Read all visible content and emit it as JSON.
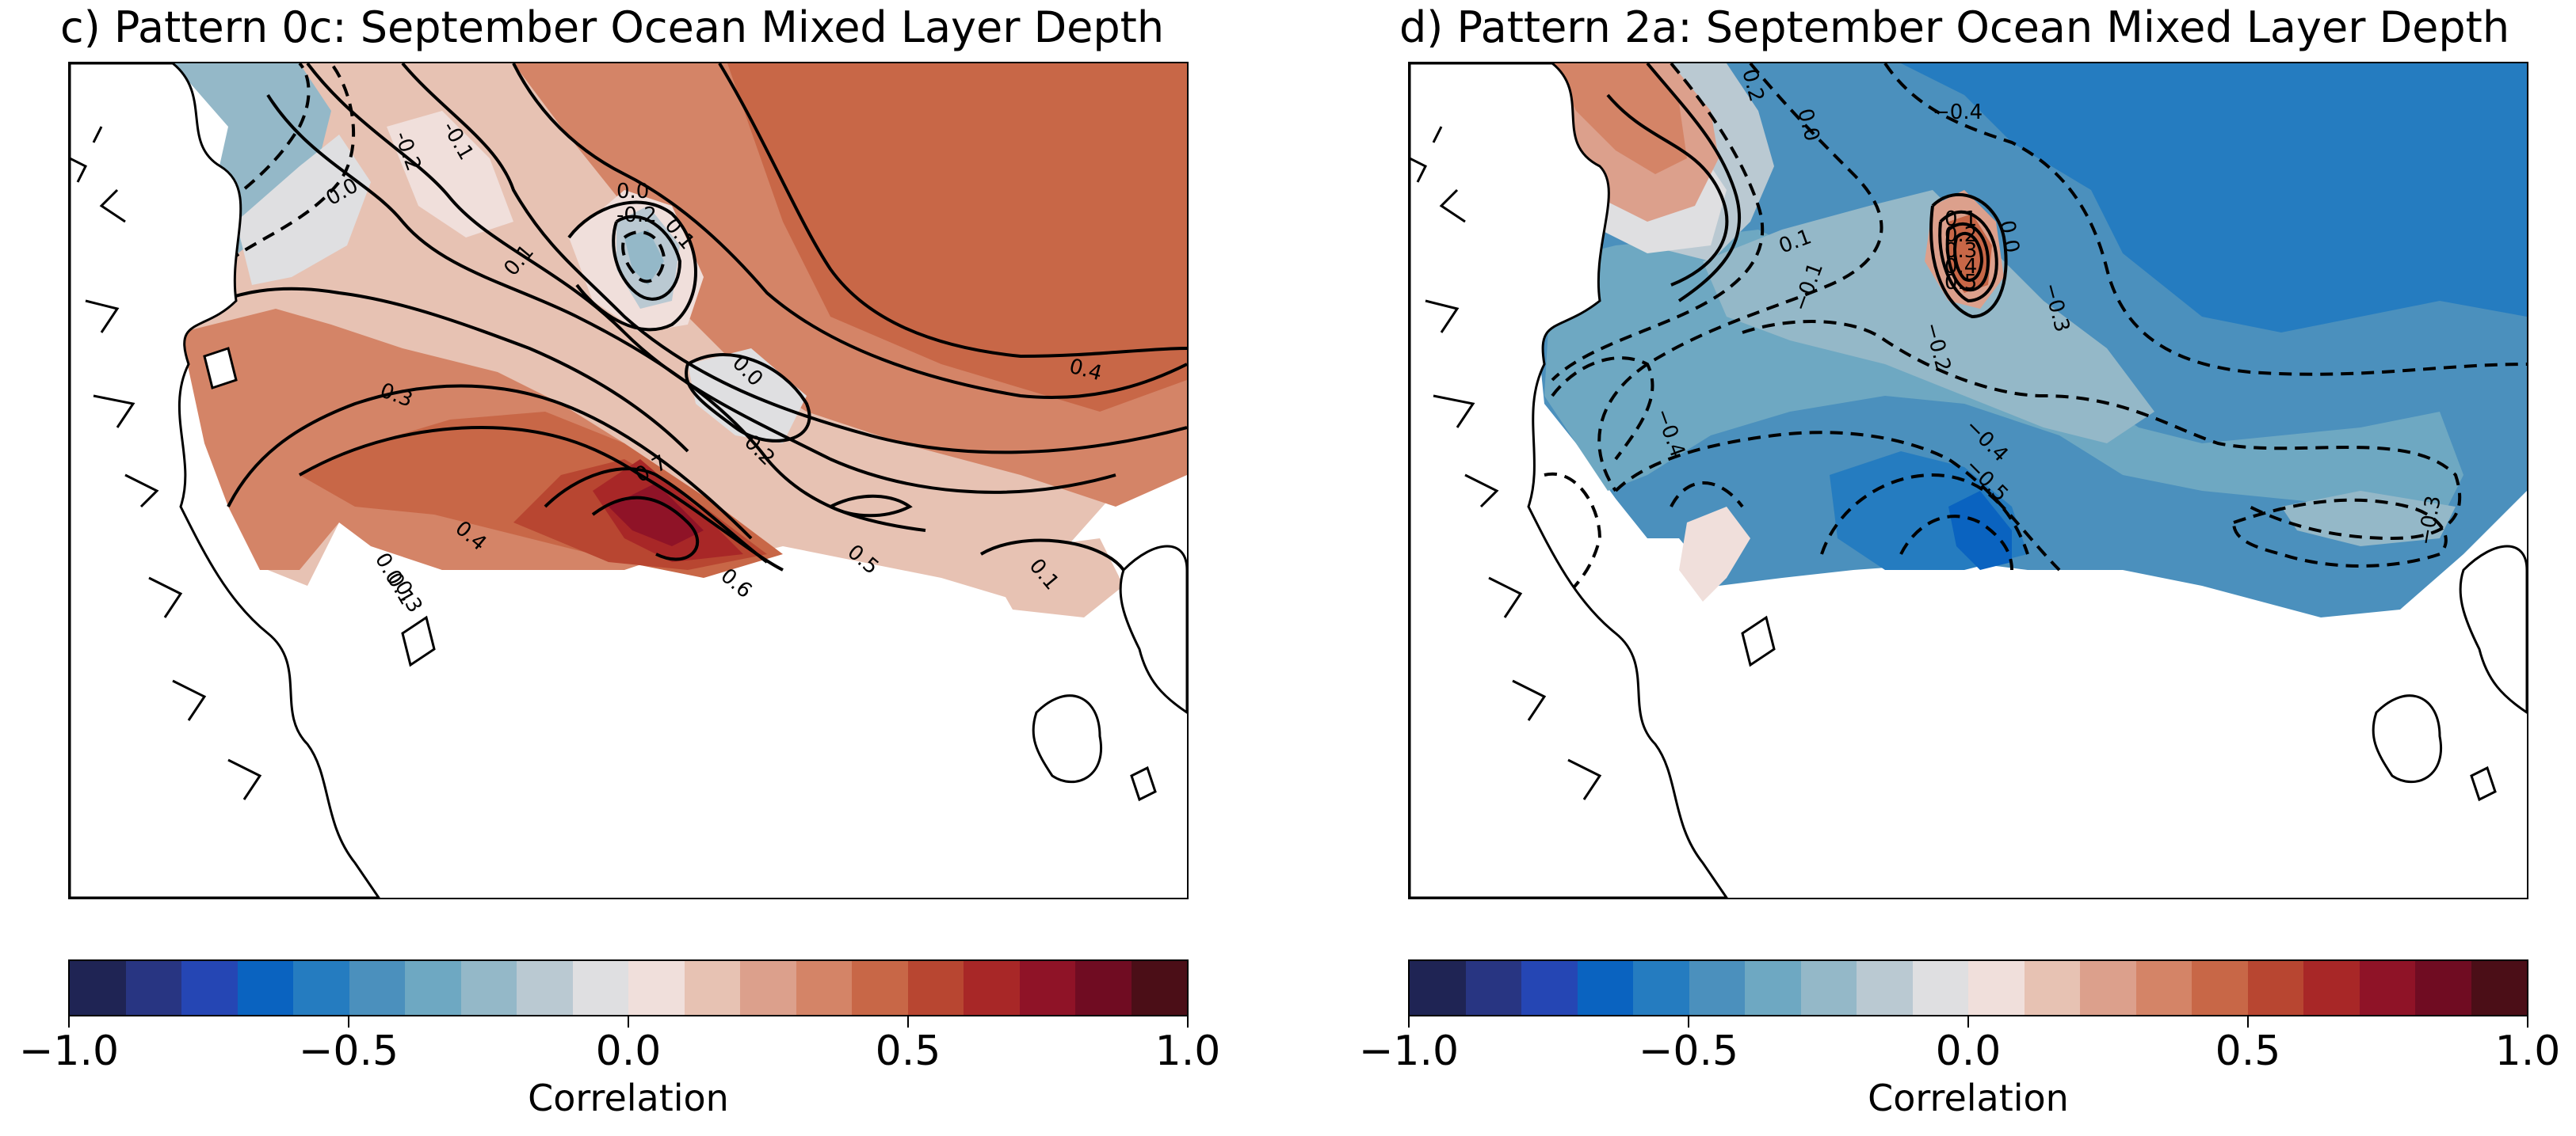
{
  "panels": [
    {
      "title": "c) Pattern 0c: September Ocean Mixed Layer Depth",
      "contour_labels": [
        "0.0",
        "-0.2",
        "-0.1",
        "0.1",
        "0.0",
        "-0.2",
        "0.1",
        "0.0",
        "0.2",
        "0.4",
        "0.3",
        "0.7",
        "0.4",
        "0.6",
        "0.5",
        "0.3",
        "0.1",
        "0.0",
        "0.1"
      ],
      "colorbar": {
        "ticks": [
          "−1.0",
          "−0.5",
          "0.0",
          "0.5",
          "1.0"
        ],
        "label": "Correlation"
      }
    },
    {
      "title": "d) Pattern 2a: September Ocean Mixed Layer Depth",
      "contour_labels": [
        "0.2",
        "0.0",
        "−0.4",
        "0.1",
        "−0.1",
        "0.1",
        "0.2",
        "0.3",
        "0.4",
        "0.5",
        "0.0",
        "−0.2",
        "−0.3",
        "−0.4",
        "−0.5",
        "−0.4",
        "−0.3"
      ],
      "colorbar": {
        "ticks": [
          "−1.0",
          "−0.5",
          "0.0",
          "0.5",
          "1.0"
        ],
        "label": "Correlation"
      }
    }
  ],
  "colormap": [
    "#1f2454",
    "#283582",
    "#2546b4",
    "#0a63c0",
    "#257cc0",
    "#4b90bd",
    "#6ea8c2",
    "#94b8c8",
    "#bac9d2",
    "#dfdfe1",
    "#f0dfdb",
    "#e7c2b3",
    "#dca08c",
    "#d48467",
    "#c86747",
    "#b84631",
    "#a82727",
    "#8f1327",
    "#700c22",
    "#4b0e17"
  ],
  "colorbar_range": [
    -1.0,
    1.0
  ]
}
